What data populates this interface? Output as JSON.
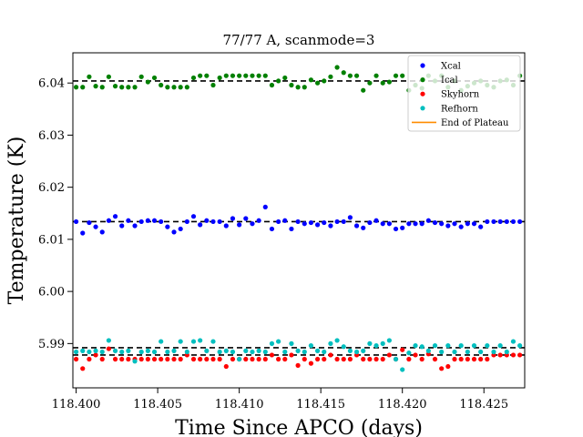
{
  "chart_data": {
    "type": "scatter",
    "title": "77/77 A, scanmode=3",
    "xlabel": "Time Since APCO (days)",
    "ylabel": "Temperature (K)",
    "xlim": [
      118.3998,
      118.4275
    ],
    "ylim": [
      5.9815,
      6.0458
    ],
    "xticks": [
      118.4,
      118.405,
      118.41,
      118.415,
      118.42,
      118.425
    ],
    "xtick_labels": [
      "118.400",
      "118.405",
      "118.410",
      "118.415",
      "118.420",
      "118.425"
    ],
    "yticks": [
      5.99,
      6.0,
      6.01,
      6.02,
      6.03,
      6.04
    ],
    "ytick_labels": [
      "5.99",
      "6.00",
      "6.01",
      "6.02",
      "6.03",
      "6.04"
    ],
    "grid": false,
    "legend_position": "top-right",
    "reference_lines": [
      {
        "y": 6.0404,
        "style": "dashed",
        "color": "#000000"
      },
      {
        "y": 6.0134,
        "style": "dashed",
        "color": "#000000"
      },
      {
        "y": 5.9892,
        "style": "dashed",
        "color": "#000000"
      },
      {
        "y": 5.9878,
        "style": "dashed",
        "color": "#000000"
      }
    ],
    "series": [
      {
        "name": "Xcal",
        "color": "#0000ff",
        "marker": "dot",
        "x": [
          118.4,
          118.4004,
          118.4008,
          118.4012,
          118.4016,
          118.402,
          118.4024,
          118.4028,
          118.4032,
          118.4036,
          118.404,
          118.4044,
          118.4048,
          118.4052,
          118.4056,
          118.406,
          118.4064,
          118.4068,
          118.4072,
          118.4076,
          118.408,
          118.4084,
          118.4088,
          118.4092,
          118.4096,
          118.41,
          118.4104,
          118.4108,
          118.4112,
          118.4116,
          118.412,
          118.4124,
          118.4128,
          118.4132,
          118.4136,
          118.414,
          118.4144,
          118.4148,
          118.4152,
          118.4156,
          118.416,
          118.4164,
          118.4168,
          118.4172,
          118.4176,
          118.418,
          118.4184,
          118.4188,
          118.4192,
          118.4196,
          118.42,
          118.4204,
          118.4208,
          118.4212,
          118.4216,
          118.422,
          118.4224,
          118.4228,
          118.4232,
          118.4236,
          118.424,
          118.4244,
          118.4248,
          118.4252,
          118.4256,
          118.426,
          118.4264,
          118.4268,
          118.4272
        ],
        "y": [
          6.0134,
          6.0112,
          6.0132,
          6.0124,
          6.0114,
          6.0136,
          6.0144,
          6.0126,
          6.0136,
          6.0126,
          6.0134,
          6.0136,
          6.0136,
          6.0134,
          6.0124,
          6.0114,
          6.012,
          6.0134,
          6.0144,
          6.0128,
          6.0136,
          6.0134,
          6.0134,
          6.0126,
          6.014,
          6.0128,
          6.014,
          6.013,
          6.0136,
          6.0162,
          6.012,
          6.0134,
          6.0136,
          6.012,
          6.0134,
          6.013,
          6.0132,
          6.0128,
          6.0132,
          6.0126,
          6.0134,
          6.0134,
          6.0142,
          6.0126,
          6.0122,
          6.0132,
          6.0136,
          6.013,
          6.013,
          6.012,
          6.0122,
          6.013,
          6.013,
          6.013,
          6.0136,
          6.0132,
          6.013,
          6.0126,
          6.013,
          6.0124,
          6.013,
          6.013,
          6.0124,
          6.0134,
          6.0134,
          6.0134,
          6.0134,
          6.0134,
          6.0134
        ]
      },
      {
        "name": "Ical",
        "color": "#008000",
        "marker": "dot",
        "x": [
          118.4,
          118.4004,
          118.4008,
          118.4012,
          118.4016,
          118.402,
          118.4024,
          118.4028,
          118.4032,
          118.4036,
          118.404,
          118.4044,
          118.4048,
          118.4052,
          118.4056,
          118.406,
          118.4064,
          118.4068,
          118.4072,
          118.4076,
          118.408,
          118.4084,
          118.4088,
          118.4092,
          118.4096,
          118.41,
          118.4104,
          118.4108,
          118.4112,
          118.4116,
          118.412,
          118.4124,
          118.4128,
          118.4132,
          118.4136,
          118.414,
          118.4144,
          118.4148,
          118.4152,
          118.4156,
          118.416,
          118.4164,
          118.4168,
          118.4172,
          118.4176,
          118.418,
          118.4184,
          118.4188,
          118.4192,
          118.4196,
          118.42,
          118.4204,
          118.4208,
          118.4212,
          118.4216,
          118.422,
          118.4224,
          118.4228,
          118.4232,
          118.4236,
          118.424,
          118.4244,
          118.4248,
          118.4252,
          118.4256,
          118.426,
          118.4264,
          118.4268,
          118.4272
        ],
        "y": [
          6.0392,
          6.0392,
          6.0412,
          6.0394,
          6.0392,
          6.0412,
          6.0394,
          6.0392,
          6.0392,
          6.0392,
          6.0412,
          6.0402,
          6.041,
          6.0396,
          6.0392,
          6.0392,
          6.0392,
          6.0392,
          6.041,
          6.0414,
          6.0414,
          6.0396,
          6.041,
          6.0414,
          6.0414,
          6.0414,
          6.0414,
          6.0414,
          6.0414,
          6.0414,
          6.0396,
          6.0404,
          6.041,
          6.0396,
          6.0392,
          6.0392,
          6.0406,
          6.04,
          6.0404,
          6.0412,
          6.043,
          6.042,
          6.0414,
          6.0414,
          6.0386,
          6.04,
          6.0414,
          6.04,
          6.0402,
          6.0414,
          6.0414,
          6.0386,
          6.0396,
          6.039,
          6.0414,
          6.0404,
          6.0414,
          6.0392,
          6.0404,
          6.0386,
          6.0394,
          6.04,
          6.0404,
          6.0396,
          6.0392,
          6.0404,
          6.0406,
          6.0396,
          6.0414
        ]
      },
      {
        "name": "Skyhorn",
        "color": "#ff0000",
        "marker": "dot",
        "x": [
          118.4,
          118.4004,
          118.4008,
          118.4012,
          118.4016,
          118.402,
          118.4024,
          118.4028,
          118.4032,
          118.4036,
          118.404,
          118.4044,
          118.4048,
          118.4052,
          118.4056,
          118.406,
          118.4064,
          118.4068,
          118.4072,
          118.4076,
          118.408,
          118.4084,
          118.4088,
          118.4092,
          118.4096,
          118.41,
          118.4104,
          118.4108,
          118.4112,
          118.4116,
          118.412,
          118.4124,
          118.4128,
          118.4132,
          118.4136,
          118.414,
          118.4144,
          118.4148,
          118.4152,
          118.4156,
          118.416,
          118.4164,
          118.4168,
          118.4172,
          118.4176,
          118.418,
          118.4184,
          118.4188,
          118.4192,
          118.4196,
          118.42,
          118.4204,
          118.4208,
          118.4212,
          118.4216,
          118.422,
          118.4224,
          118.4228,
          118.4232,
          118.4236,
          118.424,
          118.4244,
          118.4248,
          118.4252,
          118.4256,
          118.426,
          118.4264,
          118.4268,
          118.4272
        ],
        "y": [
          5.987,
          5.9852,
          5.987,
          5.9878,
          5.987,
          5.989,
          5.987,
          5.987,
          5.987,
          5.987,
          5.987,
          5.987,
          5.987,
          5.987,
          5.987,
          5.987,
          5.987,
          5.9878,
          5.987,
          5.987,
          5.987,
          5.987,
          5.987,
          5.9856,
          5.987,
          5.987,
          5.987,
          5.987,
          5.987,
          5.987,
          5.9878,
          5.987,
          5.987,
          5.9878,
          5.9858,
          5.987,
          5.9862,
          5.987,
          5.987,
          5.9878,
          5.987,
          5.987,
          5.987,
          5.9878,
          5.987,
          5.987,
          5.987,
          5.987,
          5.9878,
          5.987,
          5.9888,
          5.987,
          5.9878,
          5.987,
          5.988,
          5.987,
          5.9852,
          5.9856,
          5.987,
          5.987,
          5.987,
          5.987,
          5.987,
          5.987,
          5.9878,
          5.9878,
          5.9878,
          5.9878,
          5.9878
        ]
      },
      {
        "name": "Refhorn",
        "color": "#00bfbf",
        "marker": "dot",
        "x": [
          118.4,
          118.4004,
          118.4008,
          118.4012,
          118.4016,
          118.402,
          118.4024,
          118.4028,
          118.4032,
          118.4036,
          118.404,
          118.4044,
          118.4048,
          118.4052,
          118.4056,
          118.406,
          118.4064,
          118.4068,
          118.4072,
          118.4076,
          118.408,
          118.4084,
          118.4088,
          118.4092,
          118.4096,
          118.41,
          118.4104,
          118.4108,
          118.4112,
          118.4116,
          118.412,
          118.4124,
          118.4128,
          118.4132,
          118.4136,
          118.414,
          118.4144,
          118.4148,
          118.4152,
          118.4156,
          118.416,
          118.4164,
          118.4168,
          118.4172,
          118.4176,
          118.418,
          118.4184,
          118.4188,
          118.4192,
          118.4196,
          118.42,
          118.4204,
          118.4208,
          118.4212,
          118.4216,
          118.422,
          118.4224,
          118.4228,
          118.4232,
          118.4236,
          118.424,
          118.4244,
          118.4248,
          118.4252,
          118.4256,
          118.426,
          118.4264,
          118.4268,
          118.4272
        ],
        "y": [
          5.9884,
          5.9886,
          5.9884,
          5.9886,
          5.9884,
          5.9906,
          5.9886,
          5.9884,
          5.9886,
          5.9866,
          5.9884,
          5.9886,
          5.9884,
          5.9904,
          5.9884,
          5.9886,
          5.9904,
          5.9884,
          5.9904,
          5.9906,
          5.9886,
          5.9904,
          5.9884,
          5.9886,
          5.9884,
          5.987,
          5.9886,
          5.9884,
          5.9886,
          5.9884,
          5.99,
          5.9904,
          5.9884,
          5.99,
          5.9886,
          5.9884,
          5.9896,
          5.9886,
          5.9884,
          5.99,
          5.9906,
          5.9894,
          5.9886,
          5.9884,
          5.9886,
          5.99,
          5.9896,
          5.99,
          5.9906,
          5.987,
          5.985,
          5.9882,
          5.9896,
          5.9894,
          5.9886,
          5.9896,
          5.9884,
          5.9896,
          5.9884,
          5.9896,
          5.9884,
          5.9896,
          5.9884,
          5.9896,
          5.9884,
          5.9896,
          5.9884,
          5.9904,
          5.9896
        ]
      },
      {
        "name": "End of Plateau",
        "color": "#ff8c00",
        "marker": "line",
        "x": [],
        "y": []
      }
    ]
  }
}
